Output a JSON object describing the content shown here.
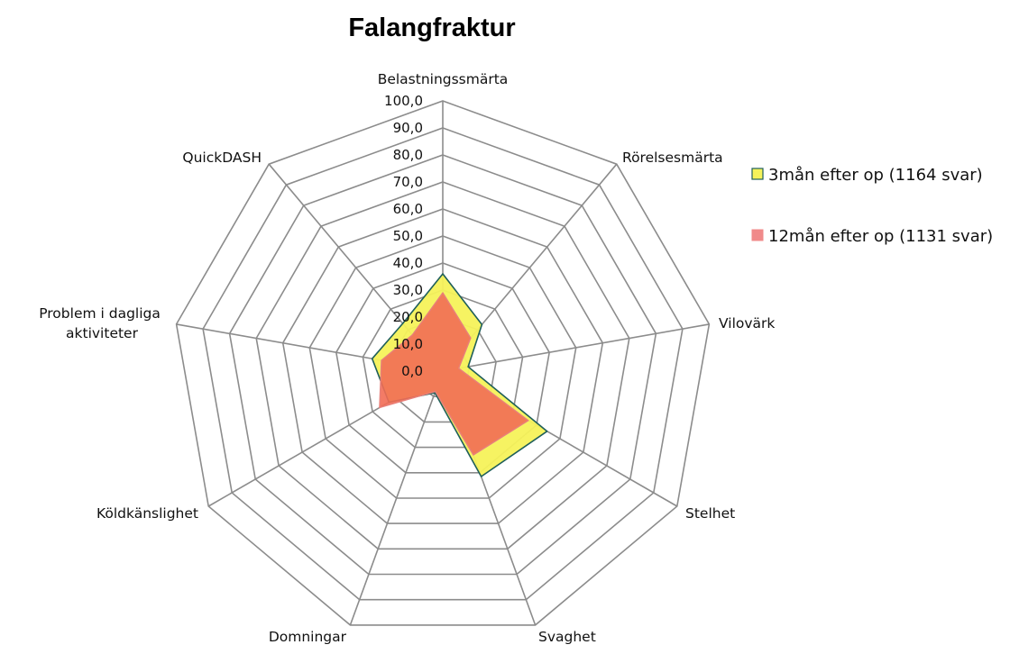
{
  "chart_data": {
    "type": "radar",
    "title": "Falangfraktur",
    "categories": [
      "Belastningssmärta",
      "Rörelsesmärta",
      "Vilovärk",
      "Stelhet",
      "Svaghet",
      "Domningar",
      "Köldkänslighet",
      "Problem i dagliga aktiviteter",
      "QuickDASH"
    ],
    "series": [
      {
        "name": "3mån efter op (1164 svar)",
        "values": [
          36.0,
          22.5,
          9.5,
          44.5,
          41.5,
          8.5,
          23.0,
          26.5,
          23.0
        ],
        "fill": "#f5f25a",
        "stroke": "#1f5f5a"
      },
      {
        "name": "12mån efter op (1131 svar)",
        "values": [
          29.0,
          16.0,
          6.0,
          36.5,
          33.0,
          8.0,
          27.0,
          23.0,
          17.5
        ],
        "fill": "#f26d55",
        "stroke": "#e8807a"
      }
    ],
    "ylim": [
      0,
      100
    ],
    "ticks": [
      "0,0",
      "10,0",
      "20,0",
      "30,0",
      "40,0",
      "50,0",
      "60,0",
      "70,0",
      "80,0",
      "90,0",
      "100,0"
    ],
    "grid": true,
    "legend": "right",
    "colors": {
      "grid": "#8c8c8c",
      "legend_marker_1": "#f5f25a",
      "legend_marker_2": "#f08a8a"
    }
  }
}
